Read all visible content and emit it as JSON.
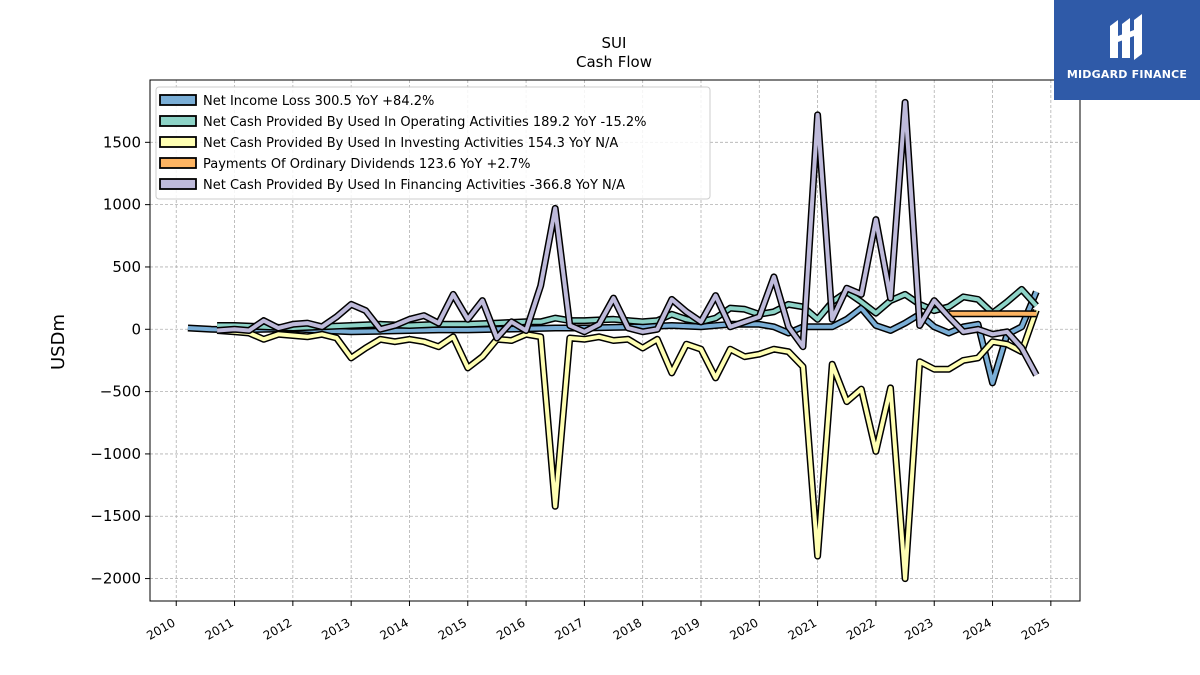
{
  "brand": {
    "name": "MIDGARD FINANCE",
    "accent": "#2f5aa8"
  },
  "chart_data": {
    "type": "line",
    "title": "SUI",
    "subtitle": "Cash Flow",
    "xlabel": "",
    "ylabel": "USDm",
    "xlim": [
      2009.55,
      2025.5
    ],
    "ylim": [
      -2180,
      2000
    ],
    "x_ticks": [
      2010,
      2011,
      2012,
      2013,
      2014,
      2015,
      2016,
      2017,
      2018,
      2019,
      2020,
      2021,
      2022,
      2023,
      2024,
      2025
    ],
    "y_ticks": [
      -2000,
      -1500,
      -1000,
      -500,
      0,
      500,
      1000,
      1500
    ],
    "y_tick_labels": [
      "−2000",
      "−1500",
      "−1000",
      "−500",
      "0",
      "500",
      "1000",
      "1500"
    ],
    "grid": true,
    "legend_position": "upper-left",
    "series": [
      {
        "name": "Net Income Loss  300.5 YoY +84.2%",
        "color": "#7aaed6",
        "points": [
          [
            2010.2,
            10
          ],
          [
            2010.6,
            0
          ],
          [
            2011.0,
            -5
          ],
          [
            2011.5,
            0
          ],
          [
            2012.0,
            5
          ],
          [
            2012.5,
            -10
          ],
          [
            2013.0,
            -20
          ],
          [
            2013.5,
            -15
          ],
          [
            2014.0,
            -10
          ],
          [
            2014.5,
            -5
          ],
          [
            2015.0,
            -5
          ],
          [
            2015.5,
            0
          ],
          [
            2016.0,
            5
          ],
          [
            2016.5,
            10
          ],
          [
            2017.0,
            10
          ],
          [
            2017.5,
            15
          ],
          [
            2018.0,
            20
          ],
          [
            2018.5,
            30
          ],
          [
            2019.0,
            20
          ],
          [
            2019.5,
            40
          ],
          [
            2020.0,
            40
          ],
          [
            2020.25,
            20
          ],
          [
            2020.5,
            -30
          ],
          [
            2020.75,
            20
          ],
          [
            2021.0,
            20
          ],
          [
            2021.25,
            20
          ],
          [
            2021.5,
            80
          ],
          [
            2021.75,
            170
          ],
          [
            2022.0,
            30
          ],
          [
            2022.25,
            -10
          ],
          [
            2022.5,
            50
          ],
          [
            2022.75,
            120
          ],
          [
            2023.0,
            20
          ],
          [
            2023.25,
            -30
          ],
          [
            2023.5,
            20
          ],
          [
            2023.75,
            40
          ],
          [
            2024.0,
            -430
          ],
          [
            2024.25,
            -40
          ],
          [
            2024.5,
            20
          ],
          [
            2024.75,
            300.5
          ]
        ]
      },
      {
        "name": "Net Cash Provided By Used In Operating Activities  189.2 YoY -15.2%",
        "color": "#8dd3c7",
        "points": [
          [
            2010.7,
            30
          ],
          [
            2011.0,
            30
          ],
          [
            2011.5,
            20
          ],
          [
            2012.0,
            10
          ],
          [
            2012.5,
            20
          ],
          [
            2013.0,
            30
          ],
          [
            2013.5,
            40
          ],
          [
            2014.0,
            30
          ],
          [
            2014.5,
            40
          ],
          [
            2015.0,
            40
          ],
          [
            2015.5,
            50
          ],
          [
            2016.0,
            60
          ],
          [
            2016.25,
            60
          ],
          [
            2016.5,
            90
          ],
          [
            2016.75,
            70
          ],
          [
            2017.0,
            70
          ],
          [
            2017.5,
            80
          ],
          [
            2018.0,
            60
          ],
          [
            2018.25,
            70
          ],
          [
            2018.5,
            120
          ],
          [
            2018.75,
            80
          ],
          [
            2019.0,
            60
          ],
          [
            2019.25,
            90
          ],
          [
            2019.5,
            170
          ],
          [
            2019.75,
            160
          ],
          [
            2020.0,
            120
          ],
          [
            2020.25,
            140
          ],
          [
            2020.5,
            200
          ],
          [
            2020.75,
            180
          ],
          [
            2021.0,
            80
          ],
          [
            2021.25,
            220
          ],
          [
            2021.5,
            300
          ],
          [
            2021.75,
            220
          ],
          [
            2022.0,
            130
          ],
          [
            2022.25,
            230
          ],
          [
            2022.5,
            280
          ],
          [
            2022.75,
            200
          ],
          [
            2023.0,
            150
          ],
          [
            2023.25,
            180
          ],
          [
            2023.5,
            260
          ],
          [
            2023.75,
            240
          ],
          [
            2024.0,
            130
          ],
          [
            2024.25,
            220
          ],
          [
            2024.5,
            320
          ],
          [
            2024.75,
            189.2
          ]
        ]
      },
      {
        "name": "Net Cash Provided By Used In Investing Activities  154.3 YoY N/A",
        "color": "#ffffb3",
        "points": [
          [
            2010.7,
            -10
          ],
          [
            2011.0,
            -20
          ],
          [
            2011.25,
            -30
          ],
          [
            2011.5,
            -80
          ],
          [
            2011.75,
            -40
          ],
          [
            2012.0,
            -50
          ],
          [
            2012.25,
            -60
          ],
          [
            2012.5,
            -40
          ],
          [
            2012.75,
            -70
          ],
          [
            2013.0,
            -230
          ],
          [
            2013.25,
            -150
          ],
          [
            2013.5,
            -80
          ],
          [
            2013.75,
            -100
          ],
          [
            2014.0,
            -80
          ],
          [
            2014.25,
            -100
          ],
          [
            2014.5,
            -140
          ],
          [
            2014.75,
            -60
          ],
          [
            2015.0,
            -310
          ],
          [
            2015.25,
            -220
          ],
          [
            2015.5,
            -80
          ],
          [
            2015.75,
            -90
          ],
          [
            2016.0,
            -40
          ],
          [
            2016.25,
            -60
          ],
          [
            2016.5,
            -1420
          ],
          [
            2016.75,
            -70
          ],
          [
            2017.0,
            -80
          ],
          [
            2017.25,
            -60
          ],
          [
            2017.5,
            -90
          ],
          [
            2017.75,
            -80
          ],
          [
            2018.0,
            -150
          ],
          [
            2018.25,
            -80
          ],
          [
            2018.5,
            -350
          ],
          [
            2018.75,
            -120
          ],
          [
            2019.0,
            -160
          ],
          [
            2019.25,
            -390
          ],
          [
            2019.5,
            -160
          ],
          [
            2019.75,
            -220
          ],
          [
            2020.0,
            -200
          ],
          [
            2020.25,
            -160
          ],
          [
            2020.5,
            -180
          ],
          [
            2020.75,
            -300
          ],
          [
            2021.0,
            -1820
          ],
          [
            2021.25,
            -280
          ],
          [
            2021.5,
            -580
          ],
          [
            2021.75,
            -480
          ],
          [
            2022.0,
            -980
          ],
          [
            2022.25,
            -470
          ],
          [
            2022.5,
            -2000
          ],
          [
            2022.75,
            -260
          ],
          [
            2023.0,
            -320
          ],
          [
            2023.25,
            -320
          ],
          [
            2023.5,
            -250
          ],
          [
            2023.75,
            -230
          ],
          [
            2024.0,
            -100
          ],
          [
            2024.25,
            -120
          ],
          [
            2024.5,
            -180
          ],
          [
            2024.75,
            154.3
          ]
        ]
      },
      {
        "name": "Payments Of Ordinary Dividends  123.6 YoY +2.7%",
        "color": "#fdb462",
        "points": [
          [
            2023.25,
            125
          ],
          [
            2023.5,
            125
          ],
          [
            2023.75,
            125
          ],
          [
            2024.0,
            125
          ],
          [
            2024.25,
            125
          ],
          [
            2024.5,
            124
          ],
          [
            2024.75,
            123.6
          ]
        ]
      },
      {
        "name": "Net Cash Provided By Used In Financing Activities  -366.8 YoY N/A",
        "color": "#bebada",
        "points": [
          [
            2010.7,
            -10
          ],
          [
            2011.0,
            0
          ],
          [
            2011.25,
            -10
          ],
          [
            2011.5,
            70
          ],
          [
            2011.75,
            10
          ],
          [
            2012.0,
            40
          ],
          [
            2012.25,
            50
          ],
          [
            2012.5,
            20
          ],
          [
            2012.75,
            100
          ],
          [
            2013.0,
            200
          ],
          [
            2013.25,
            150
          ],
          [
            2013.5,
            0
          ],
          [
            2013.75,
            30
          ],
          [
            2014.0,
            80
          ],
          [
            2014.25,
            110
          ],
          [
            2014.5,
            50
          ],
          [
            2014.75,
            280
          ],
          [
            2015.0,
            80
          ],
          [
            2015.25,
            230
          ],
          [
            2015.5,
            -70
          ],
          [
            2015.75,
            60
          ],
          [
            2016.0,
            -10
          ],
          [
            2016.25,
            350
          ],
          [
            2016.5,
            970
          ],
          [
            2016.75,
            30
          ],
          [
            2017.0,
            -20
          ],
          [
            2017.25,
            40
          ],
          [
            2017.5,
            250
          ],
          [
            2017.75,
            10
          ],
          [
            2018.0,
            -20
          ],
          [
            2018.25,
            0
          ],
          [
            2018.5,
            240
          ],
          [
            2018.75,
            140
          ],
          [
            2019.0,
            60
          ],
          [
            2019.25,
            270
          ],
          [
            2019.5,
            20
          ],
          [
            2019.75,
            60
          ],
          [
            2020.0,
            100
          ],
          [
            2020.25,
            420
          ],
          [
            2020.5,
            20
          ],
          [
            2020.75,
            -140
          ],
          [
            2021.0,
            1720
          ],
          [
            2021.25,
            80
          ],
          [
            2021.5,
            330
          ],
          [
            2021.75,
            280
          ],
          [
            2022.0,
            880
          ],
          [
            2022.25,
            250
          ],
          [
            2022.5,
            1820
          ],
          [
            2022.75,
            30
          ],
          [
            2023.0,
            230
          ],
          [
            2023.25,
            100
          ],
          [
            2023.5,
            -20
          ],
          [
            2023.75,
            0
          ],
          [
            2024.0,
            -40
          ],
          [
            2024.25,
            -20
          ],
          [
            2024.5,
            -150
          ],
          [
            2024.75,
            -366.8
          ]
        ]
      }
    ]
  }
}
